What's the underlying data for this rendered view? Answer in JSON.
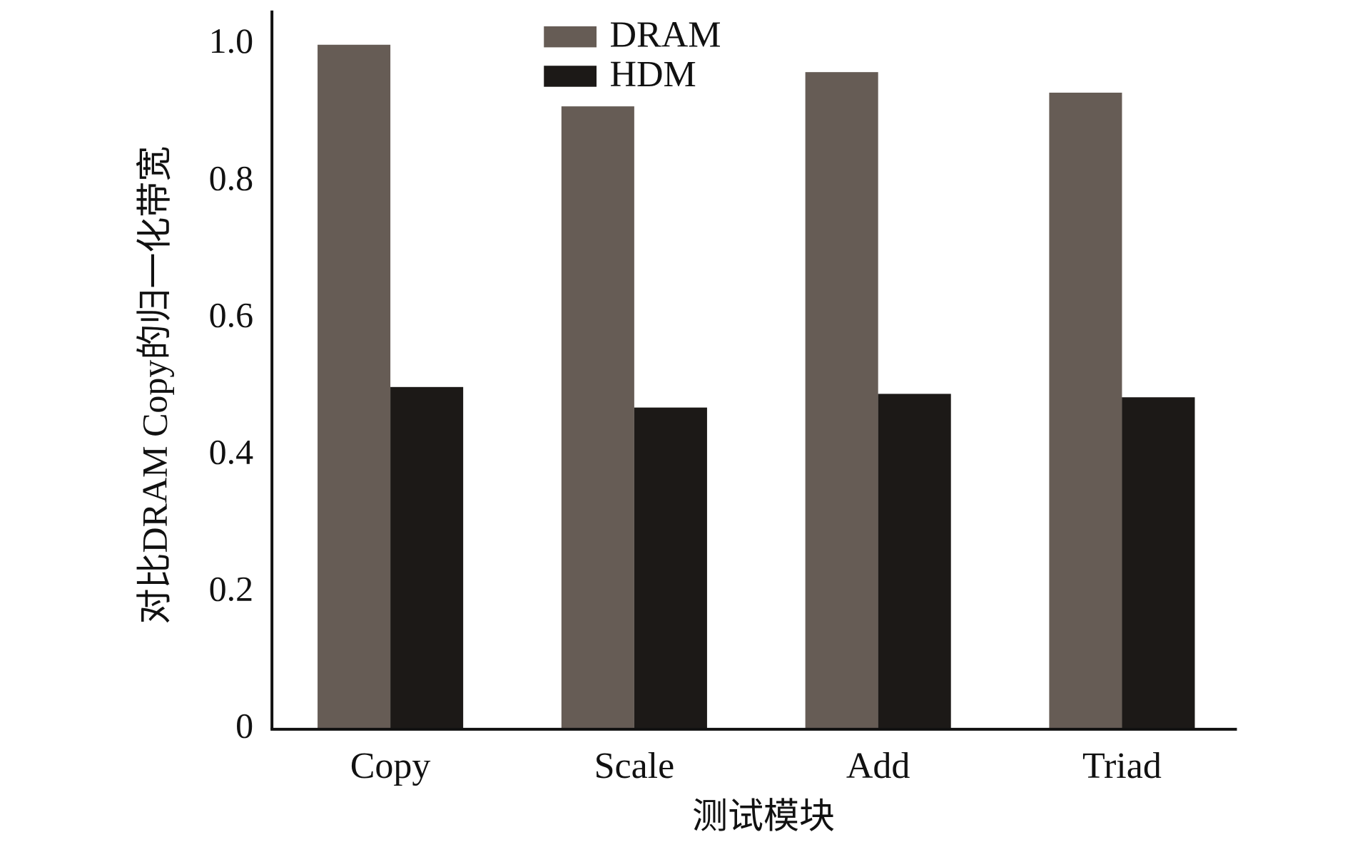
{
  "chart_data": {
    "type": "bar",
    "x_label": "测试模块",
    "y_label": "对比DRAM Copy的归一化带宽",
    "categories": [
      "Copy",
      "Scale",
      "Add",
      "Triad"
    ],
    "series": [
      {
        "name": "DRAM",
        "color": "#665c55",
        "values": [
          1.0,
          0.91,
          0.96,
          0.93
        ]
      },
      {
        "name": "HDM",
        "color": "#1c1917",
        "values": [
          0.5,
          0.47,
          0.49,
          0.485
        ]
      }
    ],
    "ylim": [
      0,
      1.05
    ],
    "yticks": [
      0,
      0.2,
      0.4,
      0.6,
      0.8,
      {
        "value": 1,
        "label": "1.0"
      }
    ],
    "grid": false,
    "legend": "top"
  }
}
